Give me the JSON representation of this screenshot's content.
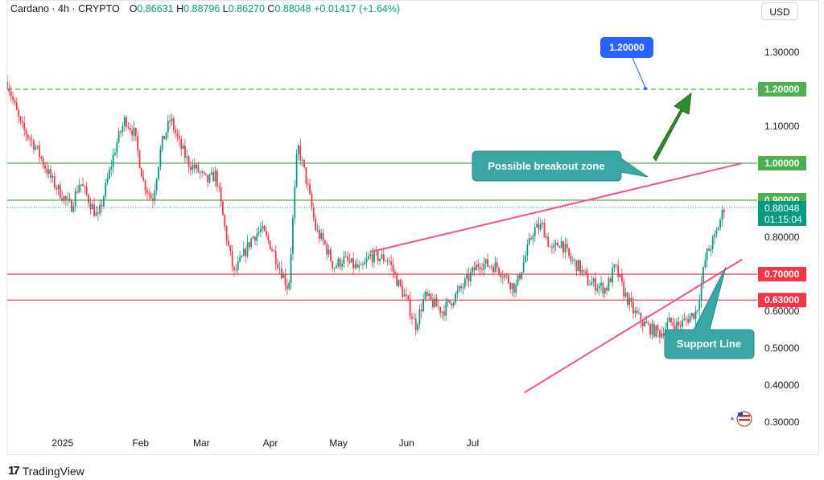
{
  "header": {
    "symbol": "Cardano · 4h · CRYPTO",
    "o_label": "O",
    "o": "0.86631",
    "h_label": "H",
    "h": "0.88796",
    "l_label": "L",
    "l": "0.86270",
    "c_label": "C",
    "c": "0.88048",
    "change": "+0.01417 (+1.64%)"
  },
  "currency_button": "USD",
  "brand": "TradingView",
  "colors": {
    "up": "#089981",
    "down": "#f23645",
    "red_line": "#f23645",
    "green_line": "#4caf50",
    "pink_trend": "#ff4d8d",
    "teal_callout": "#3aa6a6",
    "blue_badge": "#2962ff",
    "green_arrow": "#2e8b2e"
  },
  "chart_data": {
    "type": "candlestick",
    "x_tick_labels": [
      "2025",
      "Feb",
      "Mar",
      "Apr",
      "May",
      "Jun",
      "Jul"
    ],
    "ylim": [
      0.27,
      1.4
    ],
    "y_tick_labels": [
      "1.30000",
      "1.10000",
      "0.80000",
      "0.60000",
      "0.50000",
      "0.40000",
      "0.30000"
    ],
    "y_ticks": [
      1.3,
      1.1,
      0.8,
      0.6,
      0.5,
      0.4,
      0.3
    ],
    "price_series_path": [
      [
        0,
        1.22
      ],
      [
        1.5,
        1.1
      ],
      [
        3,
        1.05
      ],
      [
        5,
        0.95
      ],
      [
        7,
        0.88
      ],
      [
        8,
        0.95
      ],
      [
        9,
        0.9
      ],
      [
        10,
        0.85
      ],
      [
        12,
        1.05
      ],
      [
        13,
        1.12
      ],
      [
        14,
        1.08
      ],
      [
        15,
        0.95
      ],
      [
        16,
        0.9
      ],
      [
        17,
        1.05
      ],
      [
        18,
        1.12
      ],
      [
        19,
        1.05
      ],
      [
        20,
        1.0
      ],
      [
        21,
        0.98
      ],
      [
        22,
        0.95
      ],
      [
        23,
        0.97
      ],
      [
        24,
        0.82
      ],
      [
        25,
        0.7
      ],
      [
        26,
        0.75
      ],
      [
        27,
        0.8
      ],
      [
        28,
        0.82
      ],
      [
        29,
        0.78
      ],
      [
        30,
        0.72
      ],
      [
        31,
        0.66
      ],
      [
        32,
        1.05
      ],
      [
        33,
        0.95
      ],
      [
        34,
        0.82
      ],
      [
        35,
        0.78
      ],
      [
        36,
        0.72
      ],
      [
        37,
        0.74
      ],
      [
        39,
        0.71
      ],
      [
        40,
        0.75
      ],
      [
        42,
        0.74
      ],
      [
        43,
        0.68
      ],
      [
        44,
        0.63
      ],
      [
        45,
        0.56
      ],
      [
        46,
        0.64
      ],
      [
        47,
        0.62
      ],
      [
        48,
        0.6
      ],
      [
        49,
        0.63
      ],
      [
        50,
        0.66
      ],
      [
        52,
        0.73
      ],
      [
        54,
        0.72
      ],
      [
        56,
        0.66
      ],
      [
        58,
        0.82
      ],
      [
        59,
        0.83
      ],
      [
        60,
        0.76
      ],
      [
        61,
        0.79
      ],
      [
        62,
        0.74
      ],
      [
        63,
        0.72
      ],
      [
        64,
        0.68
      ],
      [
        66,
        0.66
      ],
      [
        67,
        0.72
      ],
      [
        68,
        0.65
      ],
      [
        69,
        0.6
      ],
      [
        70,
        0.57
      ],
      [
        71,
        0.55
      ],
      [
        72,
        0.54
      ],
      [
        73,
        0.57
      ],
      [
        74,
        0.56
      ],
      [
        75,
        0.58
      ],
      [
        76,
        0.6
      ],
      [
        77,
        0.75
      ],
      [
        78,
        0.8
      ],
      [
        79,
        0.88
      ]
    ],
    "horizontal_levels": [
      {
        "value": 1.2,
        "label": "1.20000",
        "style": "dashed",
        "color": "#4caf50"
      },
      {
        "value": 1.0,
        "label": "1.00000",
        "style": "solid",
        "color": "#4caf50"
      },
      {
        "value": 0.9,
        "label": "0.90000",
        "style": "solid",
        "color": "#4caf50"
      },
      {
        "value": 0.7,
        "label": "0.70000",
        "style": "solid",
        "color": "#f23645"
      },
      {
        "value": 0.63,
        "label": "0.63000",
        "style": "solid",
        "color": "#f23645"
      }
    ],
    "last_price": {
      "value": 0.88048,
      "label": "0.88048",
      "countdown": "01:15:04"
    },
    "annotations": {
      "target_badge": "1.20000",
      "breakout_callout": "Possible breakout zone",
      "support_callout": "Support Line"
    },
    "trendlines": [
      {
        "name": "resistance",
        "from": [
          40,
          0.76
        ],
        "to": [
          81,
          1.0
        ]
      },
      {
        "name": "support",
        "from": [
          57,
          0.38
        ],
        "to": [
          81,
          0.74
        ]
      }
    ]
  }
}
